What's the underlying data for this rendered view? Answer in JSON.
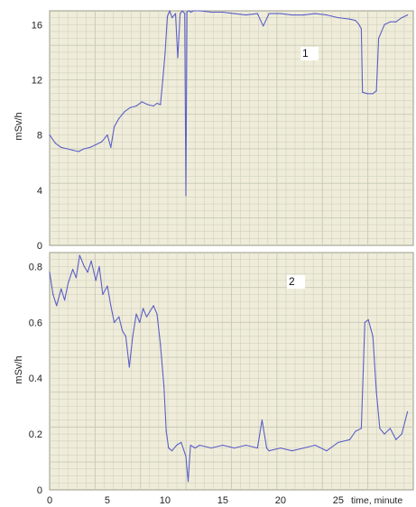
{
  "chart_data": [
    {
      "type": "line",
      "panel_label": "1",
      "ylabel": "mSv/h",
      "ylim": [
        0,
        17
      ],
      "yticks": [
        0,
        4,
        8,
        12,
        16
      ],
      "xlim": [
        0,
        31.5
      ],
      "grid": true,
      "colors": {
        "background": "#efedd9",
        "grid": "#c8c8b8",
        "line": "#5c5fc8"
      },
      "series": [
        {
          "x": [
            0,
            0.5,
            1,
            1.5,
            2,
            2.5,
            3,
            3.5,
            4,
            4.5,
            5,
            5.3,
            5.6,
            6,
            6.5,
            7,
            7.5,
            8,
            8.5,
            9,
            9.3,
            9.6,
            9.8,
            10,
            10.2,
            10.4,
            10.6,
            10.9,
            11.1,
            11.3,
            11.5,
            11.7,
            11.8,
            11.9,
            12.0,
            12.1,
            12.2,
            12.5,
            13,
            14,
            15,
            16,
            17,
            18,
            18.5,
            19,
            20,
            21,
            22,
            23,
            24,
            25,
            26,
            26.5,
            26.8,
            27,
            27.1,
            27.5,
            28,
            28.3,
            28.5,
            29,
            29.5,
            30,
            30.5,
            31
          ],
          "values": [
            8.0,
            7.4,
            7.1,
            7.0,
            6.9,
            6.8,
            7.0,
            7.1,
            7.3,
            7.5,
            8.0,
            7.1,
            8.6,
            9.2,
            9.7,
            10.0,
            10.1,
            10.4,
            10.2,
            10.1,
            10.3,
            10.2,
            12.0,
            13.9,
            16.6,
            17.0,
            16.5,
            16.8,
            13.6,
            16.8,
            17.0,
            16.8,
            3.6,
            16.9,
            17.0,
            17.0,
            16.9,
            17.0,
            17.0,
            16.9,
            16.9,
            16.8,
            16.7,
            16.8,
            15.9,
            16.8,
            16.8,
            16.7,
            16.7,
            16.8,
            16.7,
            16.5,
            16.4,
            16.3,
            16.0,
            15.7,
            11.1,
            11.0,
            11.0,
            11.2,
            15.0,
            16.0,
            16.2,
            16.2,
            16.5,
            16.7
          ]
        }
      ]
    },
    {
      "type": "line",
      "panel_label": "2",
      "ylabel": "mSv/h",
      "ylim": [
        0,
        0.85
      ],
      "yticks": [
        0,
        0.2,
        0.4,
        0.6,
        0.8
      ],
      "xlim": [
        0,
        31.5
      ],
      "xticks": [
        0,
        5,
        10,
        15,
        20,
        25
      ],
      "xlabel": "time, minute",
      "grid": true,
      "colors": {
        "background": "#efedd9",
        "grid": "#c8c8b8",
        "line": "#5c5fc8"
      },
      "series": [
        {
          "x": [
            0,
            0.3,
            0.6,
            1,
            1.3,
            1.6,
            2,
            2.3,
            2.6,
            3,
            3.3,
            3.6,
            4,
            4.3,
            4.6,
            5,
            5.3,
            5.6,
            6,
            6.3,
            6.6,
            6.9,
            7.2,
            7.5,
            7.8,
            8.1,
            8.4,
            8.7,
            9,
            9.3,
            9.6,
            9.9,
            10.1,
            10.3,
            10.6,
            11,
            11.4,
            11.8,
            12,
            12.2,
            12.6,
            13,
            14,
            15,
            16,
            17,
            18,
            18.4,
            18.8,
            19,
            20,
            21,
            22,
            23,
            24,
            25,
            26,
            26.5,
            27,
            27.3,
            27.6,
            28,
            28.3,
            28.6,
            29,
            29.5,
            30,
            30.5,
            31
          ],
          "values": [
            0.78,
            0.7,
            0.66,
            0.72,
            0.68,
            0.74,
            0.79,
            0.76,
            0.84,
            0.8,
            0.78,
            0.82,
            0.75,
            0.8,
            0.7,
            0.73,
            0.66,
            0.6,
            0.62,
            0.57,
            0.55,
            0.44,
            0.55,
            0.63,
            0.6,
            0.65,
            0.62,
            0.64,
            0.66,
            0.63,
            0.52,
            0.37,
            0.21,
            0.15,
            0.14,
            0.16,
            0.17,
            0.12,
            0.03,
            0.16,
            0.15,
            0.16,
            0.15,
            0.16,
            0.15,
            0.16,
            0.15,
            0.25,
            0.15,
            0.14,
            0.15,
            0.14,
            0.15,
            0.16,
            0.14,
            0.17,
            0.18,
            0.21,
            0.22,
            0.6,
            0.61,
            0.55,
            0.35,
            0.22,
            0.2,
            0.22,
            0.18,
            0.2,
            0.28
          ]
        }
      ]
    }
  ]
}
